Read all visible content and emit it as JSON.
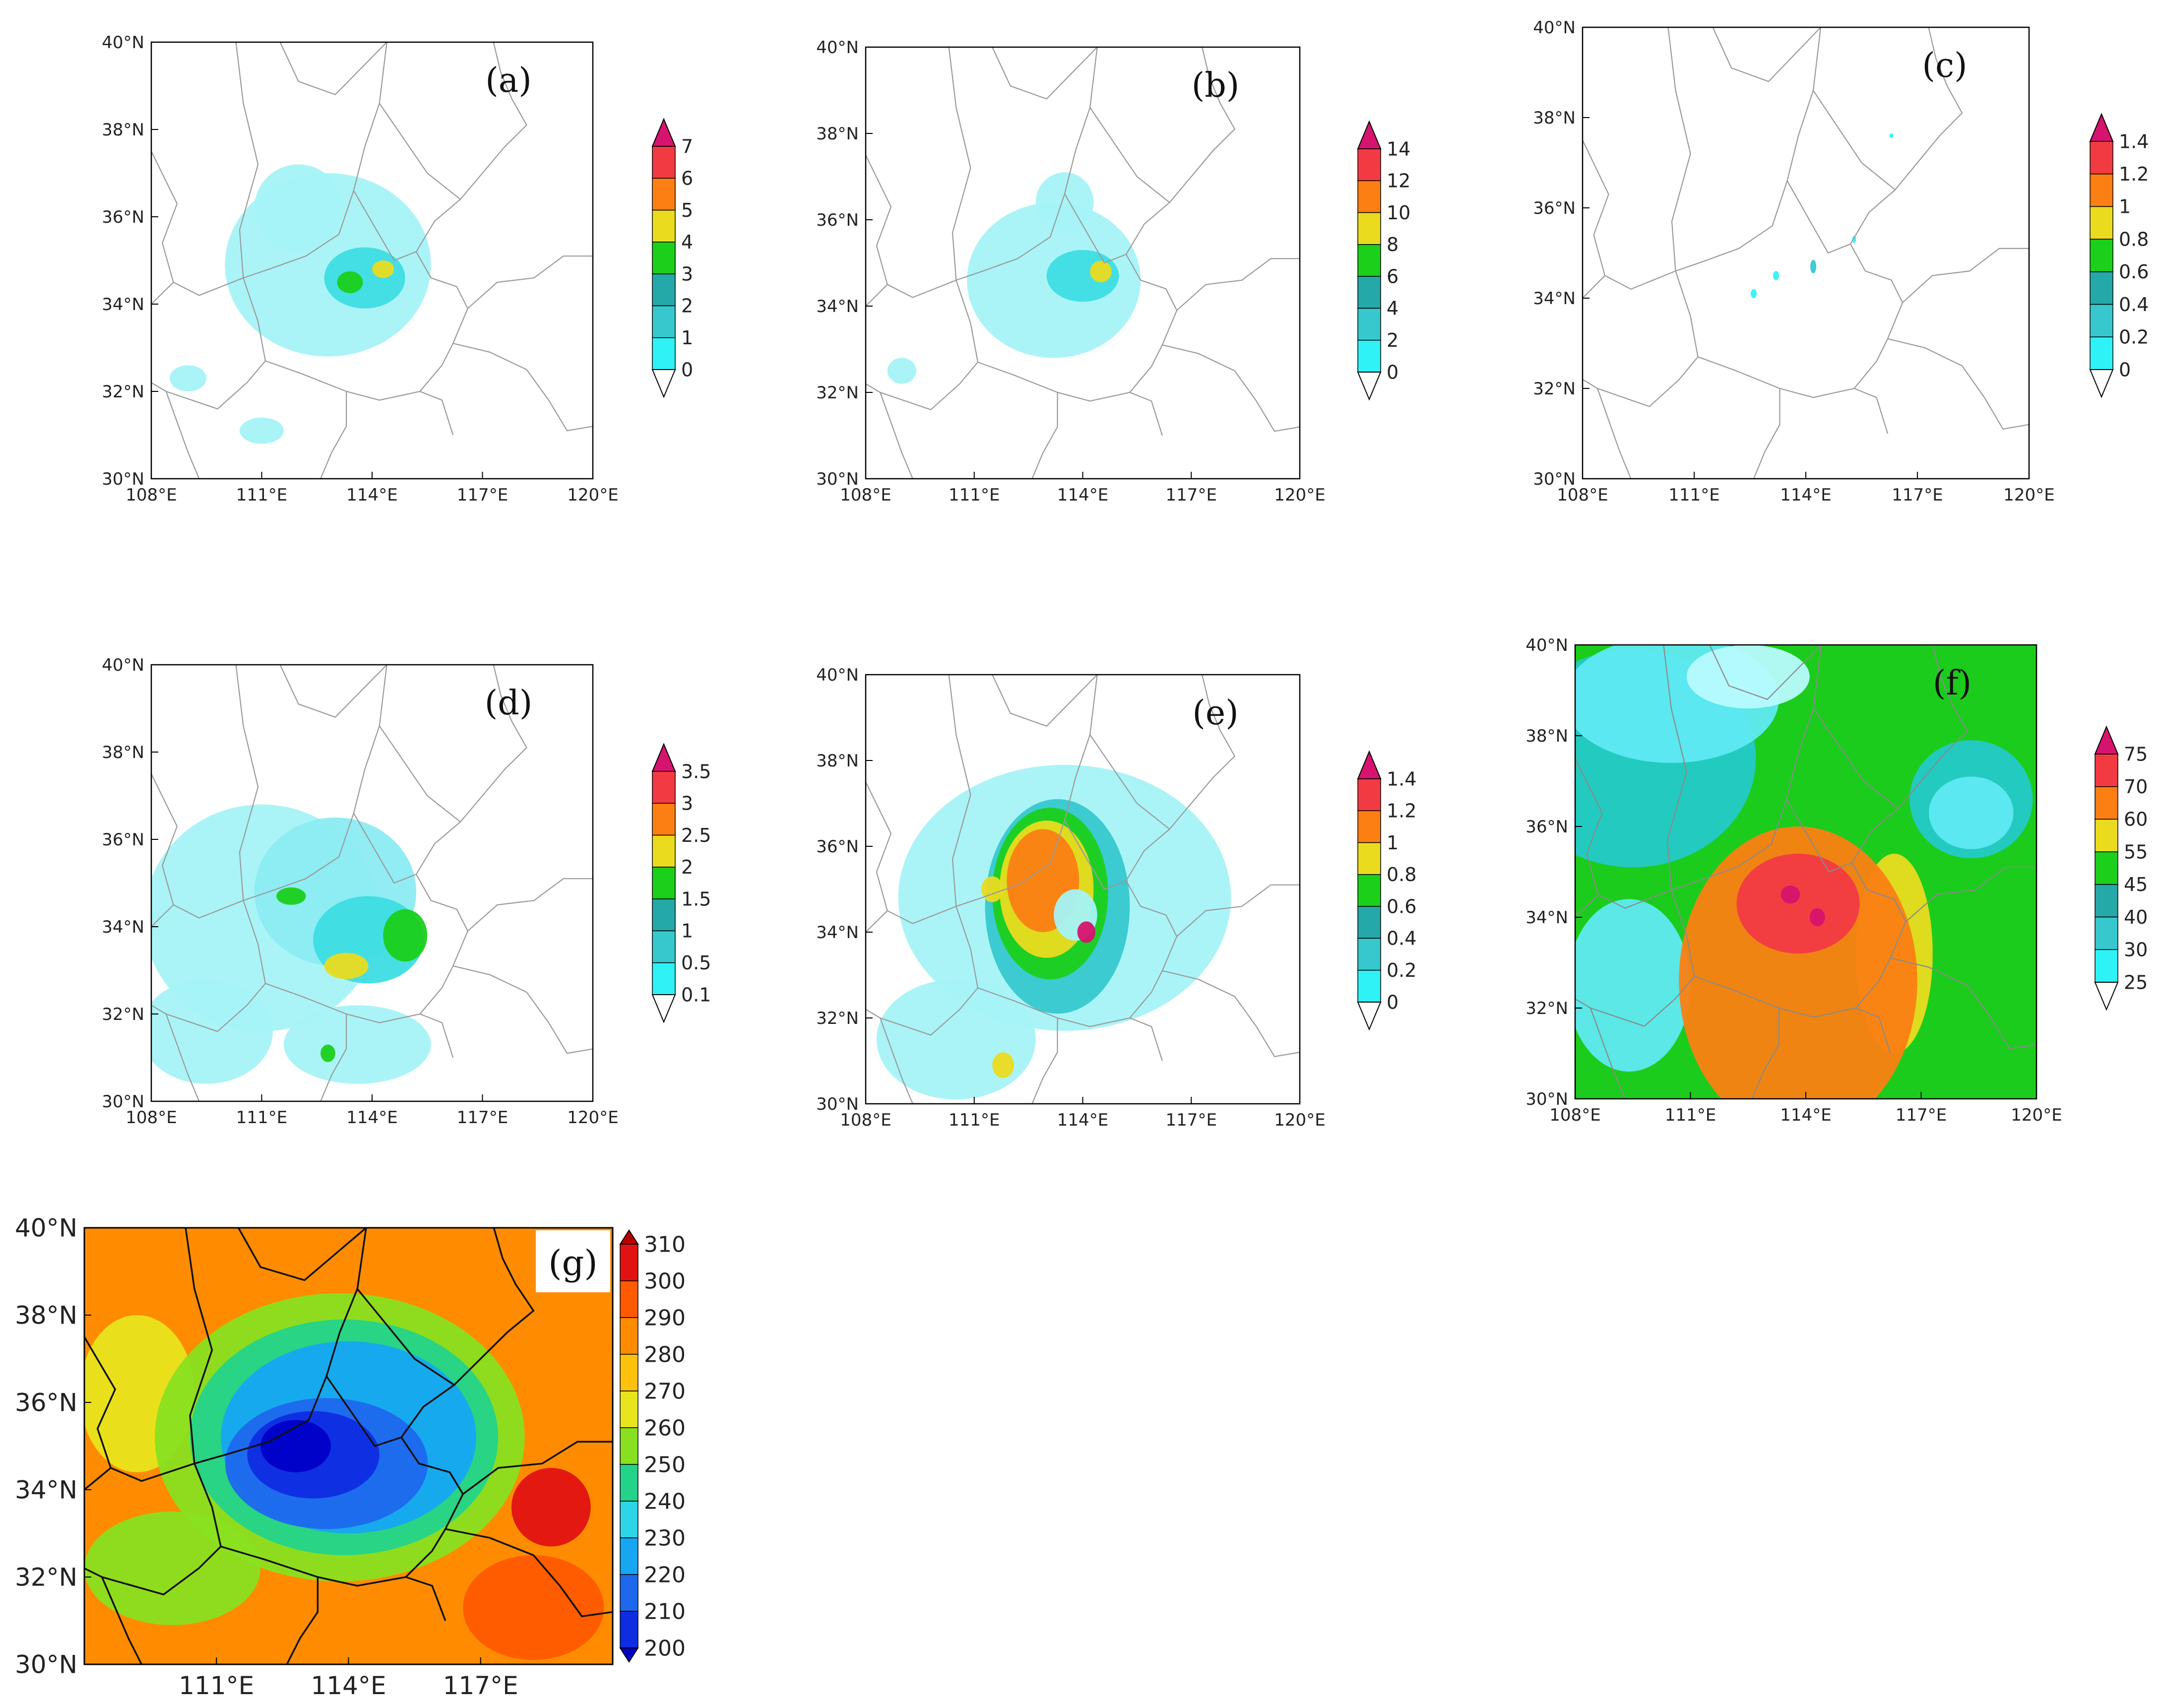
{
  "figure": {
    "panels": [
      {
        "id": "a",
        "label": "(a)",
        "style": "light",
        "lat_labels": [
          "30°N",
          "32°N",
          "34°N",
          "36°N",
          "38°N",
          "40°N"
        ],
        "lon_labels": [
          "108°E",
          "111°E",
          "114°E",
          "117°E",
          "120°E"
        ],
        "colorbar": {
          "labels": [
            "0",
            "1",
            "2",
            "3",
            "4",
            "5",
            "6",
            "7"
          ],
          "colors": [
            "#b8fbff",
            "#2ef2f5",
            "#36c8cd",
            "#25a8a8",
            "#1bcf1b",
            "#eadb1f",
            "#fb7f13",
            "#f23a43",
            "#d6136e"
          ]
        },
        "blobs": [
          {
            "lon": 112.8,
            "lat": 34.9,
            "rx": 2.8,
            "ry": 2.1,
            "c": "#a5f3f7"
          },
          {
            "lon": 112.0,
            "lat": 36.2,
            "rx": 1.2,
            "ry": 1.0,
            "c": "#a5f3f7"
          },
          {
            "lon": 113.8,
            "lat": 34.6,
            "rx": 1.1,
            "ry": 0.7,
            "c": "#3ddde3"
          },
          {
            "lon": 113.4,
            "lat": 34.5,
            "rx": 0.35,
            "ry": 0.25,
            "c": "#1bcf1b"
          },
          {
            "lon": 114.3,
            "lat": 34.8,
            "rx": 0.3,
            "ry": 0.2,
            "c": "#eadb1f"
          },
          {
            "lon": 109.0,
            "lat": 32.3,
            "rx": 0.5,
            "ry": 0.3,
            "c": "#a5f3f7"
          },
          {
            "lon": 111.0,
            "lat": 31.1,
            "rx": 0.6,
            "ry": 0.3,
            "c": "#a5f3f7"
          }
        ]
      },
      {
        "id": "b",
        "label": "(b)",
        "style": "light",
        "lat_labels": [
          "30°N",
          "32°N",
          "34°N",
          "36°N",
          "38°N",
          "40°N"
        ],
        "lon_labels": [
          "108°E",
          "111°E",
          "114°E",
          "117°E",
          "120°E"
        ],
        "colorbar": {
          "labels": [
            "0",
            "2",
            "4",
            "6",
            "8",
            "10",
            "12",
            "14"
          ],
          "colors": [
            "#b8fbff",
            "#2ef2f5",
            "#36c8cd",
            "#25a8a8",
            "#1bcf1b",
            "#eadb1f",
            "#fb7f13",
            "#f23a43",
            "#d6136e"
          ]
        },
        "blobs": [
          {
            "lon": 113.2,
            "lat": 34.6,
            "rx": 2.4,
            "ry": 1.8,
            "c": "#a5f3f7"
          },
          {
            "lon": 113.5,
            "lat": 36.4,
            "rx": 0.8,
            "ry": 0.7,
            "c": "#a5f3f7"
          },
          {
            "lon": 114.0,
            "lat": 34.7,
            "rx": 1.0,
            "ry": 0.6,
            "c": "#3ddde3"
          },
          {
            "lon": 114.5,
            "lat": 34.8,
            "rx": 0.3,
            "ry": 0.25,
            "c": "#eadb1f"
          },
          {
            "lon": 109.0,
            "lat": 32.5,
            "rx": 0.4,
            "ry": 0.3,
            "c": "#a5f3f7"
          }
        ]
      },
      {
        "id": "c",
        "label": "(c)",
        "style": "light",
        "lat_labels": [
          "30°N",
          "32°N",
          "34°N",
          "36°N",
          "38°N",
          "40°N"
        ],
        "lon_labels": [
          "108°E",
          "111°E",
          "114°E",
          "117°E",
          "120°E"
        ],
        "colorbar": {
          "labels": [
            "0",
            "0.2",
            "0.4",
            "0.6",
            "0.8",
            "1",
            "1.2",
            "1.4"
          ],
          "colors": [
            "#b8fbff",
            "#2ef2f5",
            "#36c8cd",
            "#25a8a8",
            "#1bcf1b",
            "#eadb1f",
            "#fb7f13",
            "#f23a43",
            "#d6136e"
          ]
        },
        "blobs": [
          {
            "lon": 112.6,
            "lat": 34.1,
            "rx": 0.08,
            "ry": 0.1,
            "c": "#2ef2f5"
          },
          {
            "lon": 113.2,
            "lat": 34.5,
            "rx": 0.08,
            "ry": 0.1,
            "c": "#2ef2f5"
          },
          {
            "lon": 114.2,
            "lat": 34.7,
            "rx": 0.08,
            "ry": 0.15,
            "c": "#36c8cd"
          },
          {
            "lon": 115.3,
            "lat": 35.3,
            "rx": 0.05,
            "ry": 0.08,
            "c": "#2ef2f5"
          },
          {
            "lon": 116.3,
            "lat": 37.6,
            "rx": 0.05,
            "ry": 0.05,
            "c": "#2ef2f5"
          }
        ]
      },
      {
        "id": "d",
        "label": "(d)",
        "style": "light",
        "lat_labels": [
          "30°N",
          "32°N",
          "34°N",
          "36°N",
          "38°N",
          "40°N"
        ],
        "lon_labels": [
          "108°E",
          "111°E",
          "114°E",
          "117°E",
          "120°E"
        ],
        "colorbar": {
          "labels": [
            "0.1",
            "0.5",
            "1",
            "1.5",
            "2",
            "2.5",
            "3",
            "3.5"
          ],
          "colors": [
            "#b8fbff",
            "#2ef2f5",
            "#36c8cd",
            "#25a8a8",
            "#1bcf1b",
            "#eadb1f",
            "#fb7f13",
            "#f23a43",
            "#d6136e"
          ]
        },
        "blobs": [
          {
            "lon": 111.0,
            "lat": 34.2,
            "rx": 3.2,
            "ry": 2.6,
            "c": "#a5f3f7"
          },
          {
            "lon": 109.5,
            "lat": 31.6,
            "rx": 1.8,
            "ry": 1.2,
            "c": "#a5f3f7"
          },
          {
            "lon": 113.6,
            "lat": 31.3,
            "rx": 2.0,
            "ry": 0.9,
            "c": "#a5f3f7"
          },
          {
            "lon": 113.0,
            "lat": 34.8,
            "rx": 2.2,
            "ry": 1.7,
            "c": "#8cebf2"
          },
          {
            "lon": 113.9,
            "lat": 33.7,
            "rx": 1.5,
            "ry": 1.0,
            "c": "#3ddde3"
          },
          {
            "lon": 113.3,
            "lat": 33.1,
            "rx": 0.6,
            "ry": 0.3,
            "c": "#eadb1f"
          },
          {
            "lon": 114.9,
            "lat": 33.8,
            "rx": 0.6,
            "ry": 0.6,
            "c": "#1bcf1b"
          },
          {
            "lon": 111.8,
            "lat": 34.7,
            "rx": 0.4,
            "ry": 0.2,
            "c": "#1bcf1b"
          },
          {
            "lon": 112.8,
            "lat": 31.1,
            "rx": 0.2,
            "ry": 0.2,
            "c": "#1bcf1b"
          }
        ]
      },
      {
        "id": "e",
        "label": "(e)",
        "style": "light",
        "lat_labels": [
          "30°N",
          "32°N",
          "34°N",
          "36°N",
          "38°N",
          "40°N"
        ],
        "lon_labels": [
          "108°E",
          "111°E",
          "114°E",
          "117°E",
          "120°E"
        ],
        "colorbar": {
          "labels": [
            "0",
            "0.2",
            "0.4",
            "0.6",
            "0.8",
            "1",
            "1.2",
            "1.4"
          ],
          "colors": [
            "#b8fbff",
            "#2ef2f5",
            "#36c8cd",
            "#25a8a8",
            "#1bcf1b",
            "#eadb1f",
            "#fb7f13",
            "#f23a43",
            "#d6136e"
          ]
        },
        "blobs": [
          {
            "lon": 113.5,
            "lat": 34.8,
            "rx": 4.6,
            "ry": 3.1,
            "c": "#a5f3f7"
          },
          {
            "lon": 110.5,
            "lat": 31.5,
            "rx": 2.2,
            "ry": 1.4,
            "c": "#a5f3f7"
          },
          {
            "lon": 113.3,
            "lat": 34.6,
            "rx": 2.0,
            "ry": 2.5,
            "c": "#36c8cd"
          },
          {
            "lon": 113.1,
            "lat": 34.9,
            "rx": 1.6,
            "ry": 2.0,
            "c": "#1bcf1b"
          },
          {
            "lon": 113.0,
            "lat": 35.0,
            "rx": 1.3,
            "ry": 1.6,
            "c": "#eadb1f"
          },
          {
            "lon": 112.9,
            "lat": 35.2,
            "rx": 1.0,
            "ry": 1.2,
            "c": "#fb7f13"
          },
          {
            "lon": 113.8,
            "lat": 34.4,
            "rx": 0.6,
            "ry": 0.6,
            "c": "#a5f3f7"
          },
          {
            "lon": 114.1,
            "lat": 34.0,
            "rx": 0.25,
            "ry": 0.25,
            "c": "#d6136e"
          },
          {
            "lon": 111.5,
            "lat": 35.0,
            "rx": 0.3,
            "ry": 0.3,
            "c": "#eadb1f"
          },
          {
            "lon": 111.8,
            "lat": 30.9,
            "rx": 0.3,
            "ry": 0.3,
            "c": "#eadb1f"
          }
        ]
      },
      {
        "id": "f",
        "label": "(f)",
        "style": "filled",
        "lat_labels": [
          "30°N",
          "32°N",
          "34°N",
          "36°N",
          "38°N",
          "40°N"
        ],
        "lon_labels": [
          "108°E",
          "111°E",
          "114°E",
          "117°E",
          "120°E"
        ],
        "background": "#1ccc1c",
        "colorbar": {
          "labels": [
            "25",
            "30",
            "40",
            "45",
            "55",
            "60",
            "70",
            "75"
          ],
          "colors": [
            "#b8fbff",
            "#2ef2f5",
            "#36c8cd",
            "#25a8a8",
            "#1bcf1b",
            "#eadb1f",
            "#fb7f13",
            "#f23a43",
            "#d6136e"
          ]
        },
        "blobs": [
          {
            "lon": 109.5,
            "lat": 37.5,
            "rx": 3.2,
            "ry": 2.4,
            "c": "#24c9c9"
          },
          {
            "lon": 110.5,
            "lat": 38.8,
            "rx": 2.8,
            "ry": 1.4,
            "c": "#5fe9f2"
          },
          {
            "lon": 112.5,
            "lat": 39.3,
            "rx": 1.6,
            "ry": 0.7,
            "c": "#b8fbff"
          },
          {
            "lon": 118.3,
            "lat": 36.6,
            "rx": 1.6,
            "ry": 1.3,
            "c": "#24c9c9"
          },
          {
            "lon": 118.3,
            "lat": 36.3,
            "rx": 1.1,
            "ry": 0.8,
            "c": "#5fe9f2"
          },
          {
            "lon": 109.4,
            "lat": 32.5,
            "rx": 1.6,
            "ry": 1.9,
            "c": "#5fe9f2"
          },
          {
            "lon": 116.3,
            "lat": 33.2,
            "rx": 1.0,
            "ry": 2.2,
            "c": "#eadb1f"
          },
          {
            "lon": 113.8,
            "lat": 32.6,
            "rx": 3.1,
            "ry": 3.4,
            "c": "#fb7f13"
          },
          {
            "lon": 113.8,
            "lat": 34.3,
            "rx": 1.6,
            "ry": 1.1,
            "c": "#f23a43"
          },
          {
            "lon": 113.6,
            "lat": 34.5,
            "rx": 0.25,
            "ry": 0.2,
            "c": "#d6136e"
          },
          {
            "lon": 114.3,
            "lat": 34.0,
            "rx": 0.2,
            "ry": 0.2,
            "c": "#d6136e"
          }
        ]
      },
      {
        "id": "g",
        "label": "(g)",
        "style": "filled",
        "lat_labels": [
          "30°N",
          "32°N",
          "34°N",
          "36°N",
          "38°N",
          "40°N"
        ],
        "lon_labels": [
          "111°E",
          "114°E",
          "117°E"
        ],
        "background": "#ff8c00",
        "colorbar": {
          "labels": [
            "200",
            "210",
            "220",
            "230",
            "240",
            "250",
            "260",
            "270",
            "280",
            "290",
            "300",
            "310"
          ],
          "colors": [
            "#0000c8",
            "#0f2de0",
            "#1e68ee",
            "#16a6f2",
            "#2ed4e8",
            "#24d38a",
            "#89e020",
            "#e8e51c",
            "#ffc20c",
            "#ff8c00",
            "#ff5a00",
            "#e21212",
            "#b80000"
          ]
        },
        "blobs": [
          {
            "lon": 109.2,
            "lat": 36.2,
            "rx": 1.3,
            "ry": 1.8,
            "c": "#e8e51c"
          },
          {
            "lon": 110.0,
            "lat": 32.2,
            "rx": 2.0,
            "ry": 1.3,
            "c": "#89e020"
          },
          {
            "lon": 113.8,
            "lat": 35.2,
            "rx": 4.2,
            "ry": 3.3,
            "c": "#89e020"
          },
          {
            "lon": 113.9,
            "lat": 35.2,
            "rx": 3.5,
            "ry": 2.7,
            "c": "#24d38a"
          },
          {
            "lon": 114.0,
            "lat": 35.2,
            "rx": 2.9,
            "ry": 2.2,
            "c": "#16a6f2"
          },
          {
            "lon": 113.5,
            "lat": 34.6,
            "rx": 2.3,
            "ry": 1.5,
            "c": "#1e68ee"
          },
          {
            "lon": 113.2,
            "lat": 34.8,
            "rx": 1.5,
            "ry": 1.0,
            "c": "#0f2de0"
          },
          {
            "lon": 112.8,
            "lat": 35.0,
            "rx": 0.8,
            "ry": 0.6,
            "c": "#0000c8"
          },
          {
            "lon": 118.2,
            "lat": 31.3,
            "rx": 1.6,
            "ry": 1.2,
            "c": "#ff5a00"
          },
          {
            "lon": 118.6,
            "lat": 33.6,
            "rx": 0.9,
            "ry": 0.9,
            "c": "#e21212"
          }
        ]
      }
    ]
  }
}
